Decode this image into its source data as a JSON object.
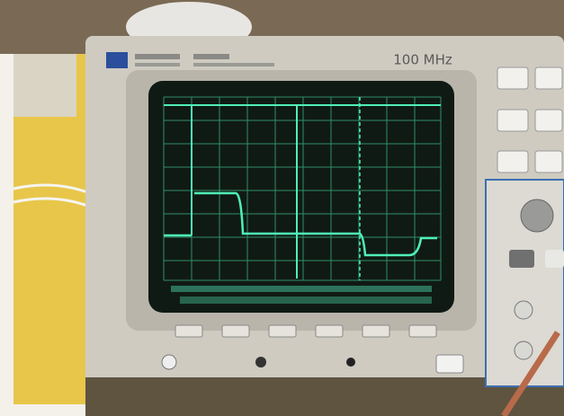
{
  "front_panel": {
    "bandwidth_label": "100 MHz"
  }
}
